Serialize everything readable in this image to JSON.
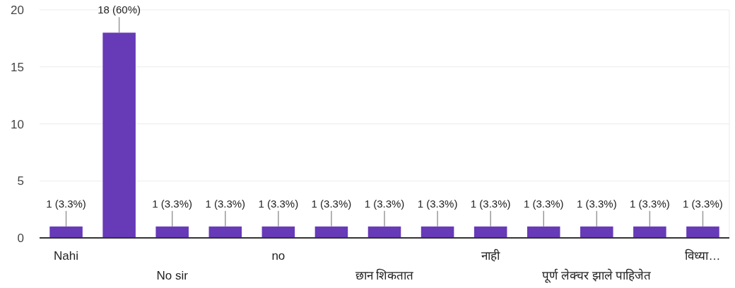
{
  "chart_data": {
    "type": "bar",
    "categories": [
      "Nahi",
      null,
      "No sir",
      null,
      "no",
      null,
      "छान शिकतात",
      null,
      "नाही",
      null,
      "पूर्ण लेक्चर झाले पाहिजेत",
      null,
      "विध्या…"
    ],
    "values": [
      1,
      18,
      1,
      1,
      1,
      1,
      1,
      1,
      1,
      1,
      1,
      1,
      1
    ],
    "value_labels": [
      "1 (3.3%)",
      "18 (60%)",
      "1 (3.3%)",
      "1 (3.3%)",
      "1 (3.3%)",
      "1 (3.3%)",
      "1 (3.3%)",
      "1 (3.3%)",
      "1 (3.3%)",
      "1 (3.3%)",
      "1 (3.3%)",
      "1 (3.3%)",
      "1 (3.3%)"
    ],
    "color": "#673ab7",
    "ylim": [
      0,
      20
    ],
    "yticks": [
      0,
      5,
      10,
      15,
      20
    ],
    "grid": "y"
  }
}
